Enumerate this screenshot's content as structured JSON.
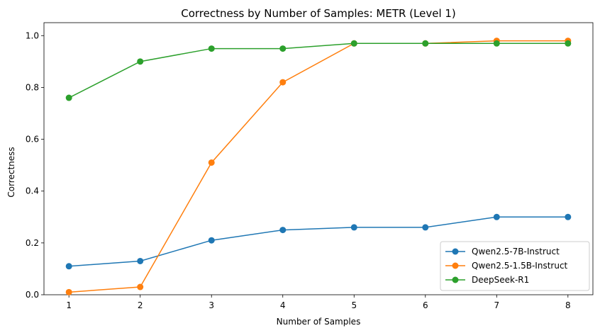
{
  "chart_data": {
    "type": "line",
    "title": "Correctness by Number of Samples: METR (Level 1)",
    "xlabel": "Number of Samples",
    "ylabel": "Correctness",
    "x": [
      1,
      2,
      3,
      4,
      5,
      6,
      7,
      8
    ],
    "xlim": [
      0.65,
      8.35
    ],
    "ylim": [
      0,
      1.05
    ],
    "xticks": [
      1,
      2,
      3,
      4,
      5,
      6,
      7,
      8
    ],
    "yticks": [
      "0.0",
      "0.2",
      "0.4",
      "0.6",
      "0.8",
      "1.0"
    ],
    "grid": false,
    "legend_position": "lower-right",
    "series": [
      {
        "name": "Qwen2.5-7B-Instruct",
        "color": "#1f77b4",
        "values": [
          0.11,
          0.13,
          0.21,
          0.25,
          0.26,
          0.26,
          0.3,
          0.3
        ]
      },
      {
        "name": "Qwen2.5-1.5B-Instruct",
        "color": "#ff7f0e",
        "values": [
          0.01,
          0.03,
          0.51,
          0.82,
          0.97,
          0.97,
          0.98,
          0.98
        ]
      },
      {
        "name": "DeepSeek-R1",
        "color": "#2ca02c",
        "values": [
          0.76,
          0.9,
          0.95,
          0.95,
          0.97,
          0.97,
          0.97,
          0.97
        ]
      }
    ]
  }
}
